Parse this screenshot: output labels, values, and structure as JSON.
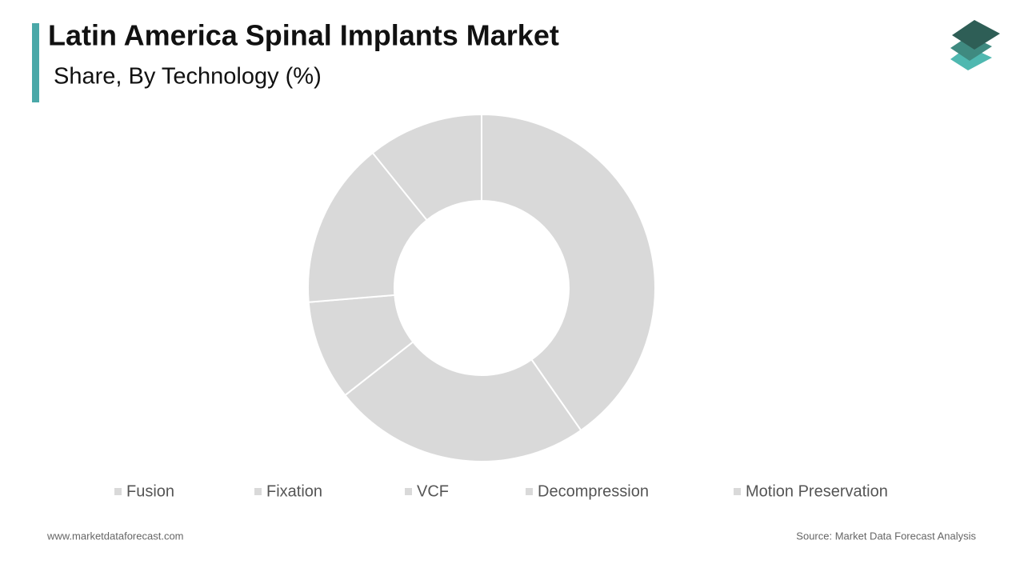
{
  "chart_data": {
    "type": "donut",
    "title": "Latin America Spinal Implants Market",
    "subtitle": "Share, By Technology  (%)",
    "categories": [
      "Fusion",
      "Fixation",
      "VCF",
      "Decompression",
      "Motion Preservation"
    ],
    "values": [
      40.3,
      24.1,
      9.3,
      15.5,
      10.8
    ],
    "colors": [
      "#d9d9d9",
      "#d9d9d9",
      "#d9d9d9",
      "#d9d9d9",
      "#d9d9d9"
    ]
  },
  "footer": {
    "website": "www.marketdataforecast.com",
    "source": "Source: Market Data Forecast Analysis"
  }
}
